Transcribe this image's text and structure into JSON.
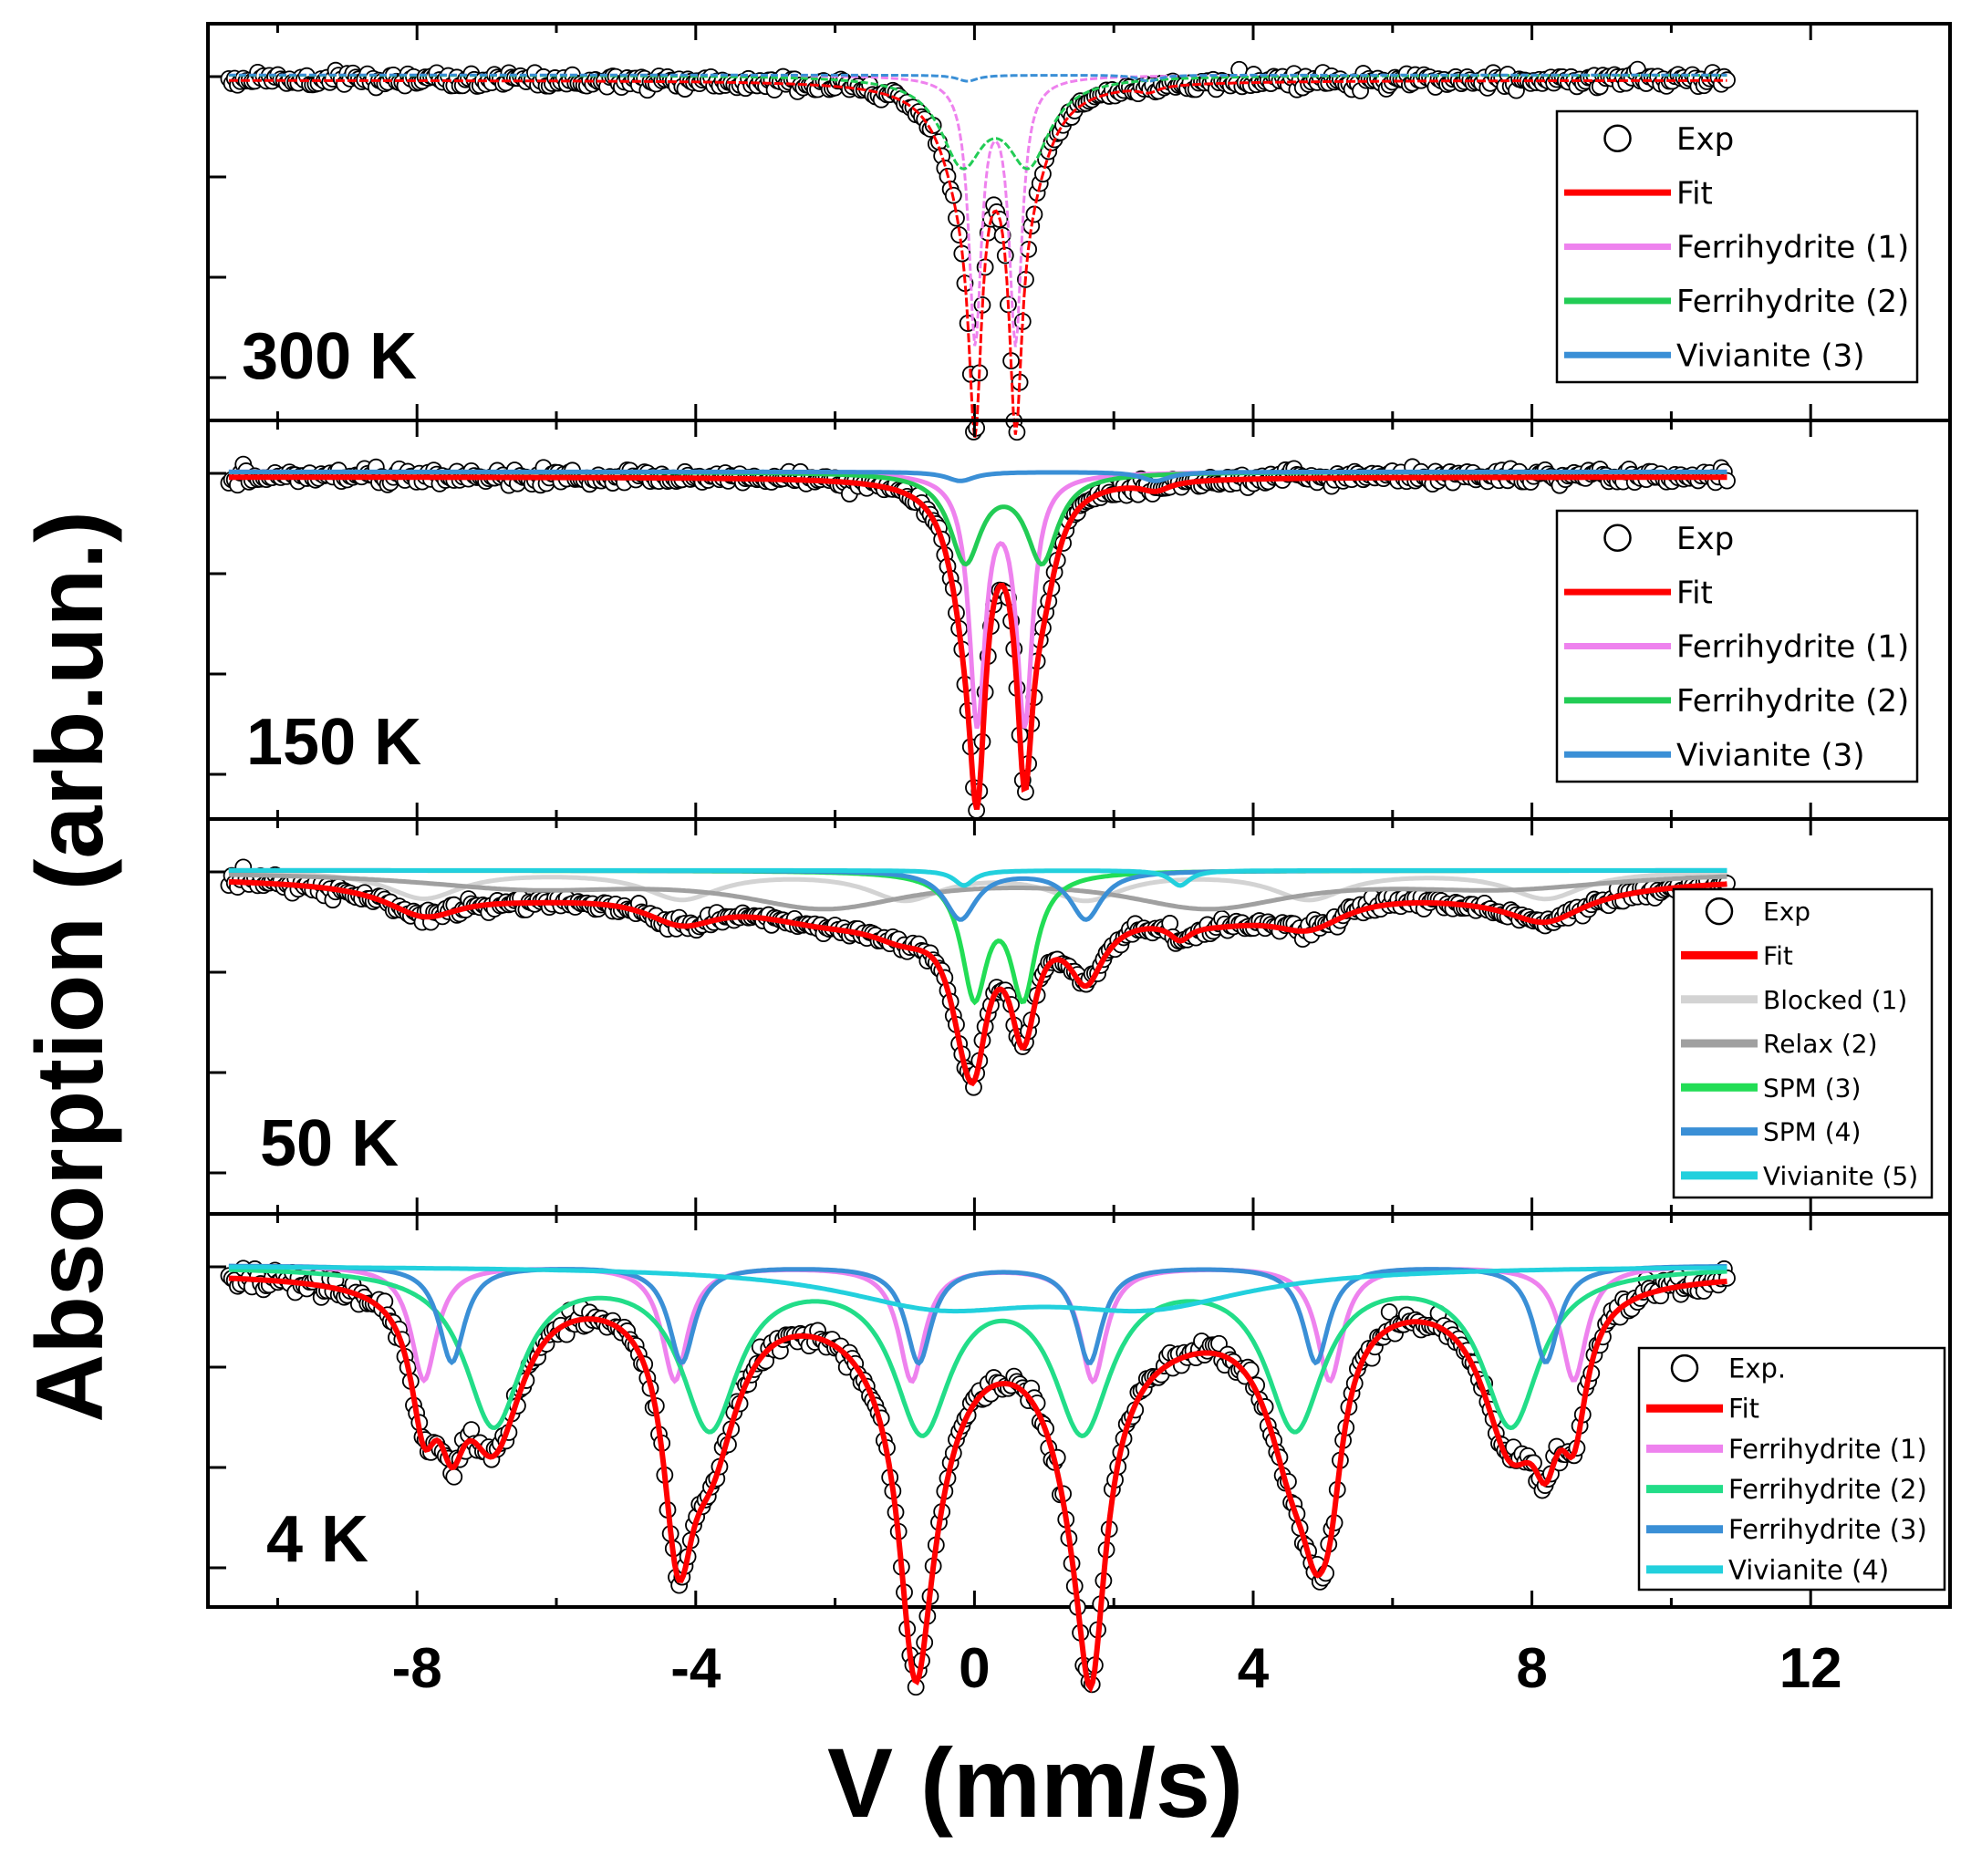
{
  "figure": {
    "xlabel": "V (mm/s)",
    "ylabel": "Absorption (arb.un.)"
  },
  "chart_data": [
    {
      "type": "scatter",
      "panel_label": "300 K",
      "xlim": [
        -11,
        14
      ],
      "x_ticks": [
        -8,
        -4,
        0,
        4,
        8,
        12
      ],
      "grid": false,
      "legend_position": "right",
      "legend": [
        {
          "label": "Exp",
          "kind": "marker",
          "color": "#000000"
        },
        {
          "label": "Fit",
          "kind": "line",
          "color": "#ff0000"
        },
        {
          "label": "Ferrihydrite (1)",
          "kind": "line",
          "color": "#ee82ee"
        },
        {
          "label": "Ferrihydrite (2)",
          "kind": "line",
          "color": "#22cc55"
        },
        {
          "label": "Vivianite (3)",
          "kind": "line",
          "color": "#3a8fd6"
        }
      ],
      "series": [
        {
          "name": "Ferrihydrite (1)",
          "color": "#ee82ee",
          "model": [
            {
              "type": "doublet",
              "center": 0.3,
              "split": 0.58,
              "width": 0.22,
              "depth": 0.86
            }
          ]
        },
        {
          "name": "Ferrihydrite (2)",
          "color": "#22cc55",
          "model": [
            {
              "type": "doublet",
              "center": 0.3,
              "split": 0.95,
              "width": 0.75,
              "depth": 0.27
            }
          ]
        },
        {
          "name": "Vivianite (3)",
          "color": "#3a8fd6",
          "model": [
            {
              "type": "doublet",
              "center": 1.2,
              "split": 2.6,
              "width": 0.35,
              "depth": 0.02
            }
          ]
        }
      ]
    },
    {
      "type": "scatter",
      "panel_label": "150 K",
      "xlim": [
        -11,
        14
      ],
      "x_ticks": [
        -8,
        -4,
        0,
        4,
        8,
        12
      ],
      "grid": false,
      "legend_position": "right",
      "legend": [
        {
          "label": "Exp",
          "kind": "marker",
          "color": "#000000"
        },
        {
          "label": "Fit",
          "kind": "line",
          "color": "#ff0000"
        },
        {
          "label": "Ferrihydrite (1)",
          "kind": "line",
          "color": "#ee82ee"
        },
        {
          "label": "Ferrihydrite (2)",
          "kind": "line",
          "color": "#22cc55"
        },
        {
          "label": "Vivianite (3)",
          "kind": "line",
          "color": "#3a8fd6"
        }
      ],
      "series": [
        {
          "name": "Ferrihydrite (1)",
          "color": "#ee82ee",
          "model": [
            {
              "type": "doublet",
              "center": 0.38,
              "split": 0.68,
              "width": 0.28,
              "depth": 0.82
            }
          ]
        },
        {
          "name": "Ferrihydrite (2)",
          "color": "#22cc55",
          "model": [
            {
              "type": "doublet",
              "center": 0.42,
              "split": 1.1,
              "width": 0.55,
              "depth": 0.29
            }
          ]
        },
        {
          "name": "Vivianite (3)",
          "color": "#3a8fd6",
          "model": [
            {
              "type": "doublet",
              "center": 1.2,
              "split": 2.8,
              "width": 0.5,
              "depth": 0.03
            }
          ]
        }
      ]
    },
    {
      "type": "scatter",
      "panel_label": "50 K",
      "xlim": [
        -11,
        14
      ],
      "x_ticks": [
        -8,
        -4,
        0,
        4,
        8,
        12
      ],
      "grid": false,
      "legend_position": "right",
      "legend": [
        {
          "label": "Exp",
          "kind": "marker",
          "color": "#000000"
        },
        {
          "label": "Fit",
          "kind": "line",
          "color": "#ff0000"
        },
        {
          "label": "Blocked (1)",
          "kind": "line",
          "color": "#d3d3d3"
        },
        {
          "label": "Relax (2)",
          "kind": "line",
          "color": "#a0a0a0"
        },
        {
          "label": "SPM (3)",
          "kind": "line",
          "color": "#22dd55"
        },
        {
          "label": "SPM (4)",
          "kind": "line",
          "color": "#3a8fd6"
        },
        {
          "label": "Vivianite (5)",
          "kind": "line",
          "color": "#22d0dd"
        }
      ],
      "series": [
        {
          "name": "Blocked (1)",
          "color": "#d3d3d3",
          "model": [
            {
              "type": "sextet",
              "center": 0.35,
              "lines": [
                -7.9,
                -4.2,
                -1.0,
                1.6,
                4.8,
                8.2
              ],
              "width": 1.3,
              "depth": 0.09
            }
          ]
        },
        {
          "name": "Relax (2)",
          "color": "#a0a0a0",
          "model": [
            {
              "type": "doublet",
              "center": 0.6,
              "split": 5.5,
              "width": 3.0,
              "depth": 0.11
            },
            {
              "type": "doublet",
              "center": 0.6,
              "split": 14.0,
              "width": 4.0,
              "depth": 0.05
            }
          ]
        },
        {
          "name": "SPM (3)",
          "color": "#22dd55",
          "model": [
            {
              "type": "doublet",
              "center": 0.35,
              "split": 0.7,
              "width": 0.45,
              "depth": 0.4
            }
          ]
        },
        {
          "name": "SPM (4)",
          "color": "#3a8fd6",
          "model": [
            {
              "type": "doublet",
              "center": 0.7,
              "split": 1.8,
              "width": 0.55,
              "depth": 0.16
            }
          ]
        },
        {
          "name": "Vivianite (5)",
          "color": "#22d0dd",
          "model": [
            {
              "type": "doublet",
              "center": 1.4,
              "split": 3.1,
              "width": 0.35,
              "depth": 0.05
            }
          ]
        }
      ]
    },
    {
      "type": "scatter",
      "panel_label": "4 K",
      "xlim": [
        -11,
        14
      ],
      "x_ticks": [
        -8,
        -4,
        0,
        4,
        8,
        12
      ],
      "grid": false,
      "legend_position": "right",
      "legend": [
        {
          "label": "Exp.",
          "kind": "marker",
          "color": "#000000"
        },
        {
          "label": "Fit",
          "kind": "line",
          "color": "#ff0000"
        },
        {
          "label": "Ferrihydrite (1)",
          "kind": "line",
          "color": "#ee82ee"
        },
        {
          "label": "Ferrihydrite (2)",
          "kind": "line",
          "color": "#22dd88"
        },
        {
          "label": "Ferrihydrite (3)",
          "kind": "line",
          "color": "#3a8fd6"
        },
        {
          "label": "Vivianite (4)",
          "kind": "line",
          "color": "#22d0dd"
        }
      ],
      "series": [
        {
          "name": "Ferrihydrite (1)",
          "color": "#ee82ee",
          "model": [
            {
              "type": "sextet",
              "lines": [
                -7.9,
                -4.3,
                -0.9,
                1.7,
                5.1,
                8.6
              ],
              "width": 0.45,
              "depth": 0.38
            }
          ]
        },
        {
          "name": "Ferrihydrite (2)",
          "color": "#22dd88",
          "model": [
            {
              "type": "sextet",
              "lines": [
                -6.9,
                -3.8,
                -0.75,
                1.55,
                4.6,
                7.7
              ],
              "width": 1.0,
              "depth": 0.52
            }
          ]
        },
        {
          "name": "Ferrihydrite (3)",
          "color": "#3a8fd6",
          "model": [
            {
              "type": "sextet",
              "lines": [
                -7.5,
                -4.2,
                -0.8,
                1.65,
                4.9,
                8.2
              ],
              "width": 0.45,
              "depth": 0.32
            }
          ]
        },
        {
          "name": "Vivianite (4)",
          "color": "#22d0dd",
          "model": [
            {
              "type": "doublet",
              "center": 1.0,
              "split": 3.0,
              "width": 3.5,
              "depth": 0.12
            }
          ]
        }
      ]
    }
  ]
}
